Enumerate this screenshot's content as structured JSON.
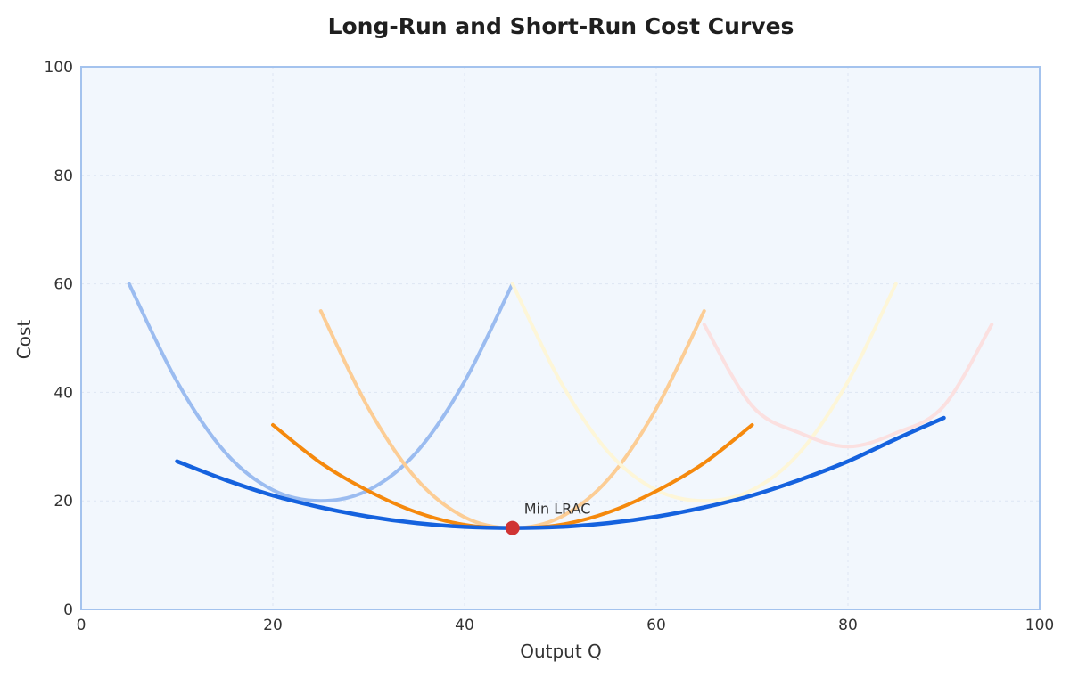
{
  "chart_data": {
    "type": "line",
    "title": "Long-Run and Short-Run Cost Curves",
    "xlabel": "Output Q",
    "ylabel": "Cost",
    "xlim": [
      0,
      100
    ],
    "ylim": [
      0,
      100
    ],
    "xticks": [
      "0",
      "20",
      "40",
      "60",
      "80",
      "100"
    ],
    "yticks": [
      "0",
      "20",
      "40",
      "60",
      "80",
      "100"
    ],
    "grid": true,
    "legend": "none",
    "series": [
      {
        "id": "srac-1",
        "color": "#9bbcf0",
        "width": 4,
        "x": [
          5,
          10,
          15,
          20,
          25,
          30,
          35,
          40,
          45
        ],
        "y": [
          60,
          42,
          29,
          22,
          20,
          22,
          29,
          42,
          60
        ]
      },
      {
        "id": "srac-2",
        "color": "#fccd95",
        "width": 4,
        "x": [
          25,
          30,
          35,
          40,
          45,
          50,
          55,
          60,
          65
        ],
        "y": [
          55,
          37,
          24,
          17,
          15,
          17,
          24,
          37,
          55
        ]
      },
      {
        "id": "srac-3",
        "color": "#fdf6d8",
        "width": 4,
        "x": [
          45,
          50,
          55,
          60,
          65,
          70,
          75,
          80,
          85
        ],
        "y": [
          60,
          42,
          29,
          22,
          20,
          22,
          29,
          42,
          60
        ]
      },
      {
        "id": "srac-4",
        "color": "#fbe0e0",
        "width": 4,
        "x": [
          65,
          70,
          75,
          80,
          85,
          90,
          95
        ],
        "y": [
          52.5,
          37.5,
          32.5,
          30,
          32.5,
          37.5,
          52.5
        ]
      },
      {
        "id": "srac-5",
        "color": "#f5890d",
        "width": 4,
        "x": [
          20,
          25,
          30,
          35,
          40,
          45,
          50,
          55,
          60,
          65,
          70
        ],
        "y": [
          34,
          27,
          21.8,
          17.9,
          15.6,
          15,
          15.6,
          17.9,
          21.8,
          27,
          34
        ]
      },
      {
        "id": "lrac",
        "color": "#1562de",
        "width": 4.5,
        "x": [
          10,
          15,
          20,
          25,
          30,
          35,
          40,
          45,
          50,
          55,
          60,
          65,
          70,
          75,
          80,
          85,
          90
        ],
        "y": [
          27.3,
          23.9,
          21,
          18.8,
          17.1,
          15.9,
          15.2,
          15,
          15.2,
          15.9,
          17.1,
          18.8,
          21,
          23.9,
          27.3,
          31.4,
          35.3
        ]
      }
    ],
    "annotations": [
      {
        "label": "Min LRAC",
        "x": 45,
        "y": 15,
        "marker_color": "#d03434"
      }
    ],
    "colors": {
      "plot_background": "#f2f7fd",
      "plot_border": "#a4c3ee",
      "grid": "#dde6f3"
    }
  }
}
